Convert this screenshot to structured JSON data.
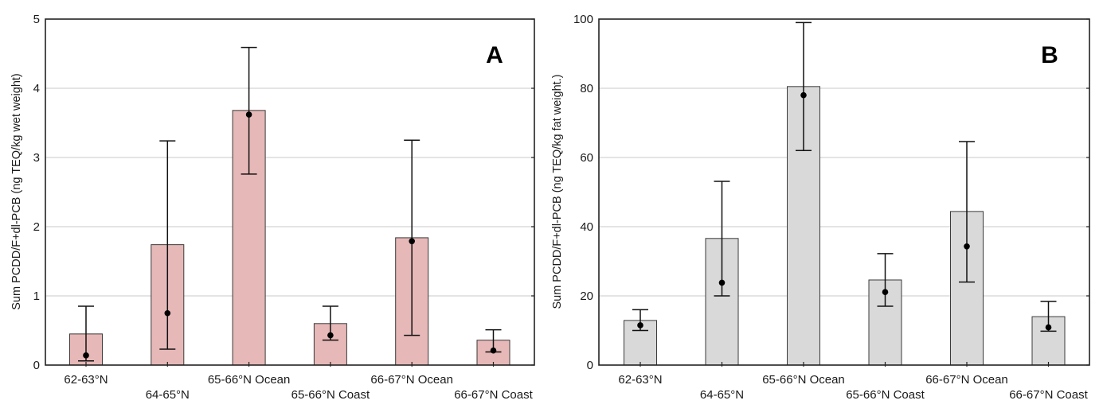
{
  "chart_data": [
    {
      "type": "bar",
      "panel_label": "A",
      "ylabel": "Sum PCDD/F+dl-PCB (ng TEQ/kg wet weight)",
      "xlabel": "",
      "ylim": [
        0,
        5
      ],
      "yticks": [
        "0",
        "1",
        "2",
        "3",
        "4",
        "5"
      ],
      "ytick_values": [
        0,
        1,
        2,
        3,
        4,
        5
      ],
      "grid": true,
      "bar_color": "#e6b8b7",
      "categories": [
        "62-63°N",
        "64-65°N",
        "65-66°N Ocean",
        "65-66°N Coast",
        "66-67°N Ocean",
        "66-67°N Coast"
      ],
      "values": [
        0.45,
        1.74,
        3.68,
        0.6,
        1.84,
        0.36
      ],
      "points": [
        0.14,
        0.75,
        3.62,
        0.43,
        1.79,
        0.21
      ],
      "error_low": [
        0.06,
        0.23,
        2.76,
        0.36,
        0.43,
        0.19
      ],
      "error_high": [
        0.85,
        3.24,
        4.59,
        0.85,
        3.25,
        0.51
      ]
    },
    {
      "type": "bar",
      "panel_label": "B",
      "ylabel": "Sum PCDD/F+dl-PCB (ng TEQ/kg fat weight.)",
      "xlabel": "",
      "ylim": [
        0,
        100
      ],
      "yticks": [
        "0",
        "20",
        "40",
        "60",
        "80",
        "100"
      ],
      "ytick_values": [
        0,
        20,
        40,
        60,
        80,
        100
      ],
      "grid": true,
      "bar_color": "#d9d9d9",
      "categories": [
        "62-63°N",
        "64-65°N",
        "65-66°N Ocean",
        "65-66°N Coast",
        "66-67°N Ocean",
        "66-67°N Coast"
      ],
      "values": [
        12.9,
        36.6,
        80.5,
        24.6,
        44.4,
        14.0
      ],
      "points": [
        11.5,
        23.8,
        78.0,
        21.1,
        34.3,
        10.9
      ],
      "error_low": [
        10.0,
        20.0,
        62.0,
        17.0,
        24.0,
        9.8
      ],
      "error_high": [
        16.0,
        53.1,
        99.0,
        32.2,
        64.6,
        18.4
      ]
    }
  ]
}
